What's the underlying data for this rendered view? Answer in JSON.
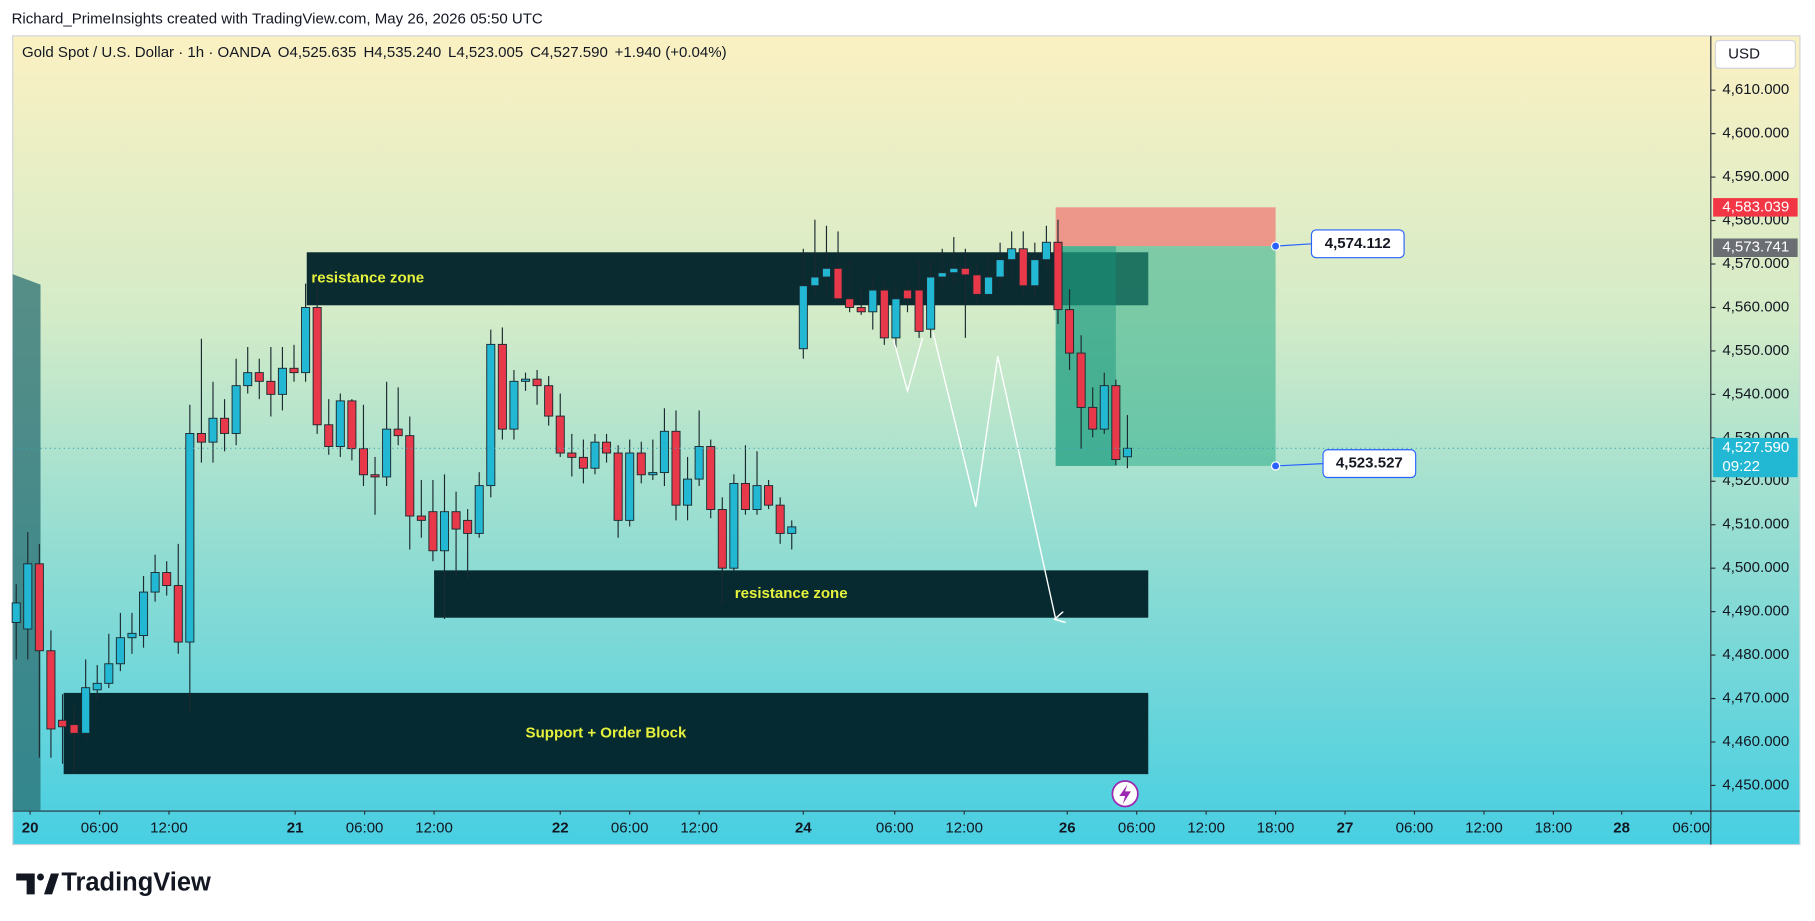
{
  "header": {
    "watermark": "Richard_PrimeInsights created with TradingView.com, May 26, 2026 05:50 UTC"
  },
  "chart_data": {
    "type": "candlestick",
    "title": "Gold Spot / U.S. Dollar · 1h · OANDA",
    "ohlc_text": [
      "O4,525.635",
      "H4,535.240",
      "L4,523.005",
      "C4,527.590",
      "+1.940 (+0.04%)"
    ],
    "currency": "USD",
    "up_color": "#22b7d3",
    "down_color": "#e8394b",
    "x": [
      0,
      1,
      2,
      3,
      4,
      5,
      6,
      7,
      8,
      9,
      10,
      11,
      12,
      13,
      14,
      15,
      16,
      17,
      18,
      19,
      20,
      21,
      22,
      23,
      24,
      25,
      26,
      27,
      28,
      29,
      30,
      31,
      32,
      33,
      34,
      35,
      36,
      37,
      38,
      39,
      40,
      41,
      42,
      43,
      44,
      45,
      46,
      47,
      48,
      49,
      50,
      51,
      52,
      53,
      54,
      55,
      56,
      57,
      58,
      59,
      60,
      61,
      62,
      63,
      64,
      65,
      66,
      67,
      68,
      69,
      70,
      71,
      72,
      73,
      74,
      75,
      76,
      77,
      78,
      79,
      80,
      81,
      82,
      83,
      84,
      85,
      86,
      87,
      88,
      89,
      90,
      91,
      92,
      93,
      94,
      95,
      96
    ],
    "open": [
      4487.5,
      4486,
      4501,
      4481,
      4465,
      4464,
      4462,
      4472,
      4473.5,
      4478,
      4484,
      4484.5,
      4494.5,
      4499,
      4496,
      4483,
      4531,
      4529,
      4534.5,
      4531,
      4542,
      4545,
      4543,
      4540,
      4546,
      4545,
      4560,
      4533,
      4528,
      4538.5,
      4527.5,
      4521.5,
      4521,
      4532,
      4530.5,
      4512,
      4513,
      4504,
      4513,
      4511,
      4508,
      4519,
      4551.5,
      4532,
      4543,
      4543.5,
      4542,
      4535,
      4526.5,
      4525.5,
      4523,
      4529,
      4526.5,
      4511,
      4526.5,
      4521.5,
      4522,
      4531.5,
      4514.5,
      4520.5,
      4528,
      4513.5,
      4500,
      4519.5,
      4513.5,
      4519,
      4514.5,
      4508,
      4550.5,
      4565,
      4567,
      4569,
      4562,
      4560,
      4559,
      4564,
      4553,
      4564,
      4564,
      4555,
      4567,
      4568,
      4569,
      4567.5,
      4563,
      4567,
      4571,
      4573.5,
      4565,
      4571,
      4575,
      4559.5,
      4549.5,
      4537,
      4532,
      4542,
      4525.635
    ],
    "high": [
      4496.3,
      4508.3,
      4505.6,
      4485.7,
      4471,
      4468.4,
      4479,
      4477.7,
      4484.9,
      4489.7,
      4489.7,
      4498.2,
      4503.1,
      4501.6,
      4505.6,
      4537.6,
      4552.8,
      4542.9,
      4538.9,
      4548.2,
      4550.9,
      4548.2,
      4550.9,
      4550.9,
      4551.4,
      4565.5,
      4566.9,
      4538.9,
      4540.2,
      4538.9,
      4537.6,
      4525.6,
      4542.9,
      4541.6,
      4534.9,
      4520.3,
      4520.3,
      4521.6,
      4517.6,
      4513.6,
      4522.1,
      4554.9,
      4555.4,
      4545.6,
      4545,
      4545.6,
      4544.2,
      4540.2,
      4530.9,
      4529.6,
      4530.9,
      4530.9,
      4528.3,
      4529.6,
      4529.1,
      4529.6,
      4536.8,
      4536.3,
      4525.6,
      4536.3,
      4529.6,
      4516.3,
      4521.6,
      4528.3,
      4526.9,
      4520.3,
      4516.3,
      4511,
      4573.5,
      4580.2,
      4578.8,
      4577.5,
      4570.9,
      4564.2,
      4566.9,
      4566.9,
      4565.5,
      4566.9,
      4570.9,
      4570.9,
      4573.5,
      4576.2,
      4573.5,
      4570.1,
      4571.7,
      4574.9,
      4577.5,
      4577.5,
      4574.9,
      4578.8,
      4580.2,
      4564.2,
      4553.6,
      4541.6,
      4545,
      4543.4,
      4535.24
    ],
    "low": [
      4479,
      4479,
      4456.4,
      4456.4,
      4455,
      4452.9,
      4460.4,
      4469.7,
      4472.4,
      4476.3,
      4480.3,
      4481.7,
      4492.3,
      4493.7,
      4480.3,
      4467,
      4524.3,
      4524.3,
      4526.9,
      4528.3,
      4540.2,
      4538.9,
      4534.9,
      4536.3,
      4542.9,
      4542.9,
      4530.9,
      4526.1,
      4525.6,
      4524.8,
      4518.9,
      4512.3,
      4518.9,
      4528.3,
      4504.3,
      4507,
      4501.6,
      4488.3,
      4497.6,
      4497.6,
      4507,
      4516.3,
      4529.6,
      4529.6,
      4540.8,
      4537.6,
      4532.8,
      4525.6,
      4521.1,
      4519.5,
      4521.6,
      4524.3,
      4507,
      4509.6,
      4519.5,
      4520.3,
      4518.9,
      4511,
      4511,
      4518.9,
      4511.5,
      4491.8,
      4499,
      4512.3,
      4512.3,
      4513.6,
      4505.6,
      4504.3,
      4548.2,
      4562.9,
      4562.9,
      4561,
      4558.9,
      4558.3,
      4554.9,
      4551.4,
      4550.4,
      4558.9,
      4553,
      4553,
      4564.2,
      4565.5,
      4553,
      4561,
      4562.1,
      4564.7,
      4566.9,
      4562.9,
      4562.1,
      4569,
      4556.2,
      4545.6,
      4527.5,
      4530.1,
      4530.9,
      4523.7,
      4523.005
    ],
    "close": [
      4492,
      4501,
      4481,
      4463,
      4463.5,
      4462,
      4472.5,
      4473.5,
      4478,
      4484,
      4485,
      4494.5,
      4499,
      4496,
      4483,
      4531,
      4529,
      4534.5,
      4531,
      4542,
      4545,
      4543,
      4540,
      4546,
      4545,
      4560,
      4533,
      4528,
      4538.5,
      4527.5,
      4521.5,
      4521,
      4532,
      4530.5,
      4512,
      4511,
      4504,
      4513,
      4509,
      4508,
      4519,
      4551.5,
      4532,
      4543,
      4543.5,
      4542,
      4535,
      4526.5,
      4525.5,
      4523,
      4529,
      4526.5,
      4511,
      4526.5,
      4521.5,
      4522,
      4531.5,
      4514.5,
      4520.5,
      4528,
      4513.5,
      4500,
      4519.5,
      4513.5,
      4519,
      4514.5,
      4508,
      4509.5,
      4565,
      4567,
      4569,
      4562,
      4560,
      4559,
      4564,
      4553,
      4562,
      4562,
      4554.5,
      4567,
      4568,
      4569,
      4567.5,
      4563,
      4567,
      4571,
      4573.5,
      4565,
      4571,
      4575,
      4559.5,
      4549.5,
      4537,
      4532,
      4542,
      4525,
      4527.59
    ],
    "xlim": [
      -0.3,
      146.4
    ],
    "xticks": [
      {
        "value": 1.2,
        "label": "20"
      },
      {
        "value": 7.2,
        "label": "06:00"
      },
      {
        "value": 13.2,
        "label": "12:00"
      },
      {
        "value": 24.1,
        "label": "21"
      },
      {
        "value": 30.1,
        "label": "06:00"
      },
      {
        "value": 36.1,
        "label": "12:00"
      },
      {
        "value": 47,
        "label": "22"
      },
      {
        "value": 53,
        "label": "06:00"
      },
      {
        "value": 59,
        "label": "12:00"
      },
      {
        "value": 68,
        "label": "24"
      },
      {
        "value": 75.9,
        "label": "06:00"
      },
      {
        "value": 81.9,
        "label": "12:00"
      },
      {
        "value": 90.8,
        "label": "26"
      },
      {
        "value": 96.8,
        "label": "06:00"
      },
      {
        "value": 102.8,
        "label": "12:00"
      },
      {
        "value": 108.8,
        "label": "18:00"
      },
      {
        "value": 114.8,
        "label": "27"
      },
      {
        "value": 120.8,
        "label": "06:00"
      },
      {
        "value": 126.8,
        "label": "12:00"
      },
      {
        "value": 132.8,
        "label": "18:00"
      },
      {
        "value": 138.7,
        "label": "28"
      },
      {
        "value": 144.7,
        "label": "06:00"
      }
    ],
    "ylim": [
      4444.1,
      4622.5
    ],
    "yticks": [
      {
        "value": 4450,
        "label": "4,450.000"
      },
      {
        "value": 4460,
        "label": "4,460.000"
      },
      {
        "value": 4470,
        "label": "4,470.000"
      },
      {
        "value": 4480,
        "label": "4,480.000"
      },
      {
        "value": 4490,
        "label": "4,490.000"
      },
      {
        "value": 4500,
        "label": "4,500.000"
      },
      {
        "value": 4510,
        "label": "4,510.000"
      },
      {
        "value": 4520,
        "label": "4,520.000"
      },
      {
        "value": 4530,
        "label": "4,530.000"
      },
      {
        "value": 4540,
        "label": "4,540.000"
      },
      {
        "value": 4550,
        "label": "4,550.000"
      },
      {
        "value": 4560,
        "label": "4,560.000"
      },
      {
        "value": 4570,
        "label": "4,570.000"
      },
      {
        "value": 4580,
        "label": "4,580.000"
      },
      {
        "value": 4590,
        "label": "4,590.000"
      },
      {
        "value": 4600,
        "label": "4,600.000"
      },
      {
        "value": 4610,
        "label": "4,610.000"
      }
    ],
    "grid": false,
    "zones": [
      {
        "label": "resistance zone",
        "x": [
          25.1,
          97.8
        ],
        "y": [
          4560.5,
          4572.7
        ]
      },
      {
        "label": "resistance zone",
        "x": [
          36.1,
          97.8
        ],
        "y": [
          4488.6,
          4499.5
        ]
      },
      {
        "label": "Support + Order Block",
        "x": [
          4.1,
          97.8
        ],
        "y": [
          4452.6,
          4471.3
        ]
      }
    ],
    "position": {
      "x": [
        89.8,
        108.8
      ],
      "stop": {
        "value": 4583.039,
        "label": "4,583.039"
      },
      "entry": {
        "value": 4574.112,
        "label": "4,574.112"
      },
      "target": {
        "value": 4523.527,
        "label": "4,523.527"
      }
    },
    "marker_price": {
      "value": 4573.741,
      "label": "4,573.741"
    },
    "last_price": {
      "value": 4527.59,
      "label": "4,527.590"
    },
    "countdown": "09:22"
  },
  "footer": {
    "logo": "TradingView"
  }
}
